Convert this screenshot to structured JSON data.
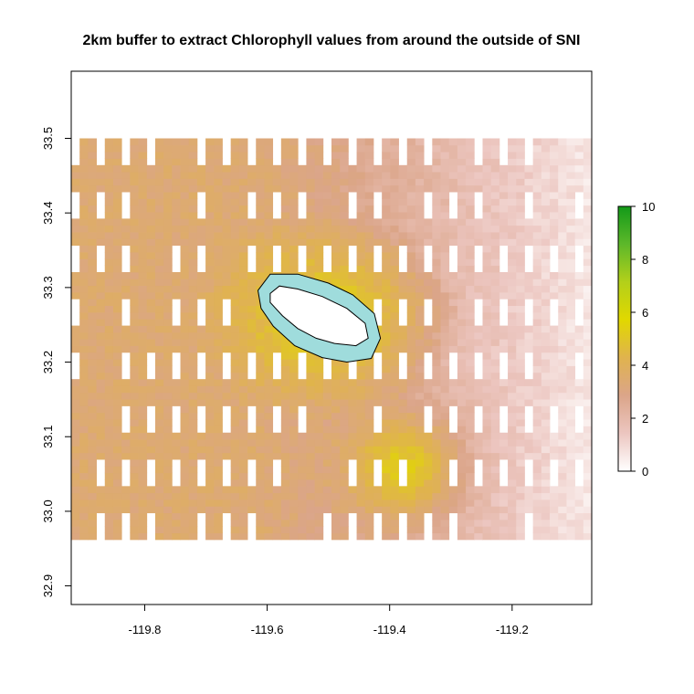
{
  "chart_data": {
    "type": "heatmap",
    "title": "2km buffer to extract Chlorophyll values from around the outside of SNI",
    "xlabel": "",
    "ylabel": "",
    "xlim": [
      -119.92,
      -119.07
    ],
    "ylim": [
      32.875,
      33.59
    ],
    "data_extent": {
      "x": [
        -119.92,
        -119.07
      ],
      "y": [
        32.962,
        33.5
      ]
    },
    "x_ticks": [
      -119.8,
      -119.6,
      -119.4,
      -119.2
    ],
    "x_tick_labels": [
      "-119.8",
      "-119.6",
      "-119.4",
      "-119.2"
    ],
    "y_ticks": [
      32.9,
      33.0,
      33.1,
      33.2,
      33.3,
      33.4,
      33.5
    ],
    "y_tick_labels": [
      "32.9",
      "33.0",
      "33.1",
      "33.2",
      "33.3",
      "33.4",
      "33.5"
    ],
    "colorbar": {
      "range": [
        0,
        10
      ],
      "ticks": [
        0,
        2,
        4,
        6,
        8,
        10
      ],
      "tick_labels": [
        "0",
        "2",
        "4",
        "6",
        "8",
        "10"
      ],
      "colors": [
        "#ffffff",
        "#ecc6c0",
        "#dba589",
        "#e0b34e",
        "#e1d800",
        "#b3d01a",
        "#5db82a",
        "#139a19"
      ]
    },
    "value_pattern": {
      "east_value": 0.6,
      "west_value": 3.4,
      "south_central_value": 5.2,
      "island_ring_value": 5.8,
      "buffer_fill_color": "#9fdcdc"
    },
    "island_outline": [
      [
        -119.595,
        33.292
      ],
      [
        -119.58,
        33.302
      ],
      [
        -119.55,
        33.298
      ],
      [
        -119.51,
        33.288
      ],
      [
        -119.47,
        33.272
      ],
      [
        -119.44,
        33.252
      ],
      [
        -119.435,
        33.232
      ],
      [
        -119.455,
        33.222
      ],
      [
        -119.49,
        33.225
      ],
      [
        -119.52,
        33.232
      ],
      [
        -119.55,
        33.245
      ],
      [
        -119.575,
        33.262
      ],
      [
        -119.595,
        33.28
      ]
    ],
    "buffer_outline": [
      [
        -119.615,
        33.296
      ],
      [
        -119.595,
        33.318
      ],
      [
        -119.55,
        33.318
      ],
      [
        -119.5,
        33.306
      ],
      [
        -119.46,
        33.29
      ],
      [
        -119.425,
        33.265
      ],
      [
        -119.415,
        33.232
      ],
      [
        -119.43,
        33.205
      ],
      [
        -119.47,
        33.2
      ],
      [
        -119.51,
        33.206
      ],
      [
        -119.555,
        33.222
      ],
      [
        -119.59,
        33.248
      ],
      [
        -119.61,
        33.272
      ]
    ]
  }
}
